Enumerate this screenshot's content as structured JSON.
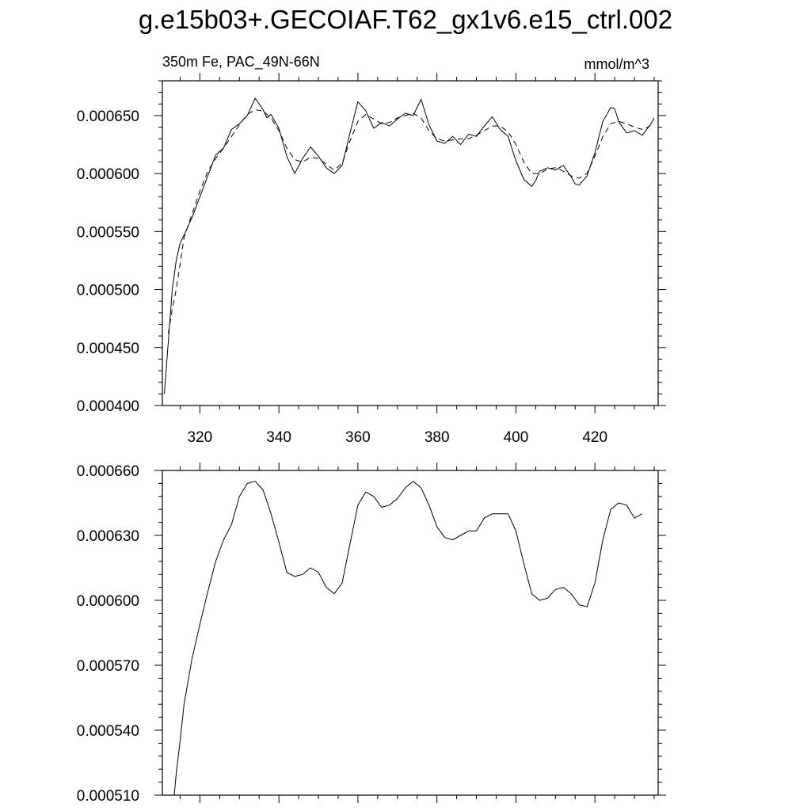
{
  "figure": {
    "title": "g.e15b03+.GECOIAF.T62_gx1v6.e15_ctrl.002"
  },
  "chart_data": [
    {
      "type": "line",
      "title": "",
      "left_subtitle": "350m Fe, PAC_49N-66N",
      "right_subtitle": "mmol/m^3",
      "xlabel": "",
      "ylabel": "",
      "xlim": [
        310.5,
        436
      ],
      "ylim": [
        0.0004,
        0.00068
      ],
      "x_ticks": [
        320,
        340,
        360,
        380,
        400,
        420
      ],
      "x_tick_labels": [
        "320",
        "340",
        "360",
        "380",
        "400",
        "420"
      ],
      "y_ticks": [
        0.0004,
        0.00045,
        0.0005,
        0.00055,
        0.0006,
        0.00065
      ],
      "y_tick_labels": [
        "0.000400",
        "0.000450",
        "0.000500",
        "0.000550",
        "0.000600",
        "0.000650"
      ],
      "grid": false,
      "series": [
        {
          "style": "solid",
          "x": [
            311,
            313,
            314,
            315,
            316,
            318,
            320,
            322,
            324,
            326,
            328,
            330,
            332,
            334,
            336,
            337,
            338,
            340,
            342,
            344,
            346,
            348,
            350,
            352,
            354,
            356,
            358,
            360,
            362,
            364,
            366,
            368,
            370,
            372,
            374,
            376,
            378,
            380,
            382,
            384,
            386,
            388,
            390,
            392,
            394,
            396,
            398,
            400,
            402,
            404,
            405,
            406,
            408,
            410,
            412,
            414,
            415,
            416,
            418,
            420,
            422,
            424,
            425,
            426,
            428,
            430,
            432,
            434,
            435
          ],
          "y": [
            0.00041,
            0.0005,
            0.000525,
            0.00054,
            0.000547,
            0.000562,
            0.00058,
            0.000598,
            0.000616,
            0.000622,
            0.000638,
            0.000643,
            0.00065,
            0.000665,
            0.000655,
            0.000648,
            0.000651,
            0.000639,
            0.000615,
            0.0006,
            0.000613,
            0.000623,
            0.000615,
            0.000605,
            0.0006,
            0.000607,
            0.000635,
            0.000662,
            0.000654,
            0.000639,
            0.000644,
            0.000641,
            0.000647,
            0.000652,
            0.00065,
            0.000664,
            0.000642,
            0.000628,
            0.000626,
            0.000632,
            0.000625,
            0.000634,
            0.000632,
            0.000641,
            0.000649,
            0.000638,
            0.000632,
            0.000611,
            0.000595,
            0.000589,
            0.000594,
            0.000602,
            0.000605,
            0.000603,
            0.000607,
            0.000597,
            0.000591,
            0.00059,
            0.000598,
            0.000618,
            0.000645,
            0.000657,
            0.000656,
            0.000645,
            0.000635,
            0.000637,
            0.000633,
            0.000642,
            0.000648
          ]
        },
        {
          "style": "dashed",
          "x": [
            312,
            313,
            314,
            315,
            316,
            318,
            320,
            322,
            324,
            326,
            328,
            330,
            332,
            334,
            336,
            338,
            340,
            342,
            344,
            346,
            348,
            350,
            352,
            354,
            356,
            358,
            360,
            362,
            364,
            366,
            368,
            370,
            372,
            374,
            376,
            378,
            380,
            382,
            384,
            386,
            388,
            390,
            392,
            394,
            396,
            398,
            400,
            402,
            404,
            406,
            408,
            410,
            412,
            414,
            416,
            418,
            420,
            422,
            424,
            426,
            428,
            430,
            432,
            434
          ],
          "y": [
            0.000462,
            0.000483,
            0.0005,
            0.000522,
            0.000545,
            0.000565,
            0.000585,
            0.000602,
            0.000613,
            0.000622,
            0.000632,
            0.000642,
            0.000651,
            0.000655,
            0.000654,
            0.000648,
            0.000637,
            0.000622,
            0.000612,
            0.00061,
            0.000614,
            0.000613,
            0.000608,
            0.000603,
            0.000609,
            0.000628,
            0.000645,
            0.000651,
            0.000647,
            0.000643,
            0.000644,
            0.000648,
            0.00065,
            0.000652,
            0.000648,
            0.000637,
            0.00063,
            0.000628,
            0.000629,
            0.00063,
            0.00063,
            0.000633,
            0.000637,
            0.000641,
            0.000641,
            0.000636,
            0.000625,
            0.00061,
            0.0006,
            0.0006,
            0.000604,
            0.000605,
            0.000602,
            0.000598,
            0.000596,
            0.0006,
            0.000615,
            0.000632,
            0.000643,
            0.000645,
            0.000643,
            0.00064,
            0.000638,
            0.000641
          ]
        }
      ]
    },
    {
      "type": "line",
      "title": "",
      "xlabel": "",
      "ylabel": "",
      "xlim": [
        310.5,
        436
      ],
      "ylim": [
        0.00051,
        0.00066
      ],
      "x_ticks": [
        320,
        340,
        360,
        380,
        400,
        420
      ],
      "x_tick_labels": [],
      "y_ticks": [
        0.00051,
        0.00054,
        0.00057,
        0.0006,
        0.00063,
        0.00066
      ],
      "y_tick_labels": [
        "0.000510",
        "0.000540",
        "0.000570",
        "0.000600",
        "0.000630",
        "0.000660"
      ],
      "grid": false,
      "series": [
        {
          "style": "solid",
          "x": [
            313.5,
            314,
            315,
            316,
            318,
            320,
            322,
            324,
            326,
            328,
            330,
            332,
            334,
            336,
            338,
            340,
            342,
            344,
            346,
            348,
            350,
            352,
            354,
            356,
            358,
            360,
            362,
            364,
            366,
            368,
            370,
            372,
            374,
            376,
            378,
            380,
            382,
            384,
            386,
            388,
            390,
            392,
            394,
            396,
            398,
            400,
            402,
            404,
            406,
            408,
            410,
            412,
            414,
            416,
            418,
            420,
            422,
            424,
            426,
            428,
            430,
            432
          ],
          "y": [
            0.00051,
            0.00052,
            0.000535,
            0.000552,
            0.000573,
            0.000589,
            0.000604,
            0.000618,
            0.000628,
            0.000635,
            0.000648,
            0.000654,
            0.000655,
            0.000651,
            0.00064,
            0.000627,
            0.000613,
            0.000611,
            0.000612,
            0.000615,
            0.000613,
            0.000606,
            0.000603,
            0.000608,
            0.000626,
            0.000644,
            0.00065,
            0.000648,
            0.000643,
            0.000644,
            0.000647,
            0.000652,
            0.000655,
            0.000652,
            0.000644,
            0.000634,
            0.000629,
            0.000628,
            0.00063,
            0.000632,
            0.000632,
            0.000638,
            0.00064,
            0.00064,
            0.00064,
            0.000632,
            0.000617,
            0.000603,
            0.0006,
            0.000601,
            0.000605,
            0.000606,
            0.000603,
            0.000598,
            0.000597,
            0.000608,
            0.000628,
            0.000642,
            0.000645,
            0.000644,
            0.000638,
            0.00064
          ]
        }
      ]
    }
  ]
}
